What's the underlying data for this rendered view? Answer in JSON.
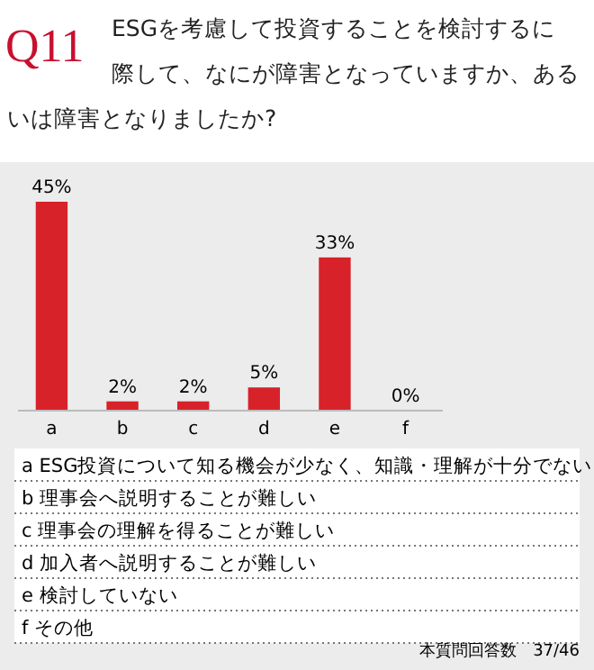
{
  "chart_data": {
    "type": "bar",
    "title": "Q11",
    "subtitle": "ESGを考慮して投資することを検討するに際して、なにが障害となっていますか、あるいは障害となりましたか?",
    "categories": [
      "a",
      "b",
      "c",
      "d",
      "e",
      "f"
    ],
    "values": [
      45,
      2,
      2,
      5,
      33,
      0
    ],
    "value_labels": [
      "45%",
      "2%",
      "2%",
      "5%",
      "33%",
      "0%"
    ],
    "color": "#d7222a",
    "annotations": [
      "a ESG投資について知る機会が少なく、知識・理解が十分でない",
      "b 理事会へ説明することが難しい",
      "c 理事会の理解を得ることが難しい",
      "d 加入者へ説明することが難しい",
      "e 検討していない",
      "f その他",
      "本質問回答数　37/46"
    ]
  }
}
